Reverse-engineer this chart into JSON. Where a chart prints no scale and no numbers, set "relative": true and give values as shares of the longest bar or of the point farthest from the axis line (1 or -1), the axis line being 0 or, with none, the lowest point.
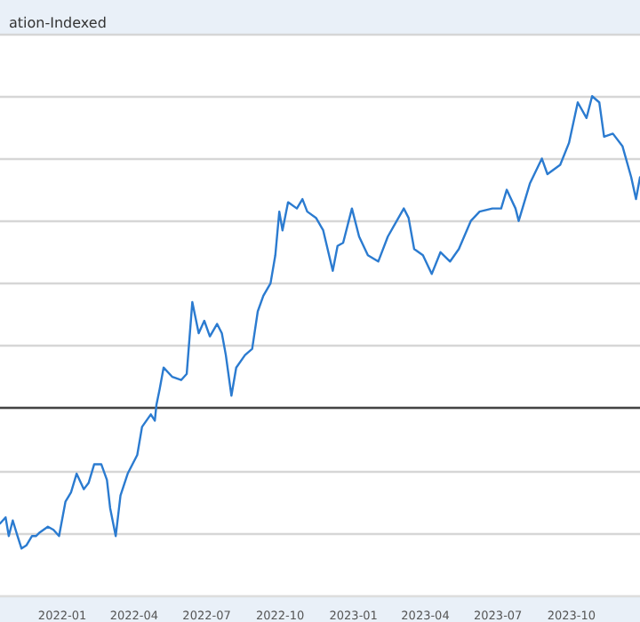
{
  "chart_data": {
    "type": "line",
    "title": "ation-Indexed",
    "relative": true,
    "grid": "y",
    "marker": "none",
    "line_style": "solid",
    "xlim": [
      "2021-10-15",
      "2023-12-26"
    ],
    "xticks": [
      {
        "value": "2022-01-01",
        "label": "2022-01"
      },
      {
        "value": "2022-04-01",
        "label": "2022-04"
      },
      {
        "value": "2022-07-01",
        "label": "2022-07"
      },
      {
        "value": "2022-10-01",
        "label": "2022-10"
      },
      {
        "value": "2023-01-01",
        "label": "2023-01"
      },
      {
        "value": "2023-04-01",
        "label": "2023-04"
      },
      {
        "value": "2023-07-01",
        "label": "2023-07"
      },
      {
        "value": "2023-10-01",
        "label": "2023-10"
      }
    ],
    "x": [
      "2021-10-15",
      "2021-10-22",
      "2021-10-26",
      "2021-10-31",
      "2021-11-06",
      "2021-11-11",
      "2021-11-17",
      "2021-11-24",
      "2021-11-29",
      "2021-12-03",
      "2021-12-14",
      "2021-12-21",
      "2021-12-28",
      "2022-01-05",
      "2022-01-12",
      "2022-01-19",
      "2022-01-28",
      "2022-02-03",
      "2022-02-10",
      "2022-02-19",
      "2022-02-26",
      "2022-03-02",
      "2022-03-09",
      "2022-03-15",
      "2022-03-24",
      "2022-04-05",
      "2022-04-11",
      "2022-04-22",
      "2022-04-27",
      "2022-04-29",
      "2022-05-03",
      "2022-05-08",
      "2022-05-19",
      "2022-05-30",
      "2022-06-06",
      "2022-06-13",
      "2022-06-21",
      "2022-06-28",
      "2022-07-05",
      "2022-07-14",
      "2022-07-20",
      "2022-07-25",
      "2022-08-01",
      "2022-08-07",
      "2022-08-18",
      "2022-08-27",
      "2022-09-03",
      "2022-09-10",
      "2022-09-19",
      "2022-09-25",
      "2022-09-30",
      "2022-10-04",
      "2022-10-11",
      "2022-10-22",
      "2022-10-29",
      "2022-11-04",
      "2022-11-15",
      "2022-11-24",
      "2022-12-06",
      "2022-12-12",
      "2022-12-19",
      "2022-12-30",
      "2023-01-08",
      "2023-01-19",
      "2023-02-01",
      "2023-02-13",
      "2023-03-05",
      "2023-03-11",
      "2023-03-18",
      "2023-03-29",
      "2023-04-09",
      "2023-04-20",
      "2023-05-02",
      "2023-05-13",
      "2023-05-28",
      "2023-06-08",
      "2023-06-24",
      "2023-07-05",
      "2023-07-12",
      "2023-07-23",
      "2023-07-27",
      "2023-08-10",
      "2023-08-25",
      "2023-09-01",
      "2023-09-17",
      "2023-09-28",
      "2023-10-09",
      "2023-10-20",
      "2023-10-27",
      "2023-11-05",
      "2023-11-11",
      "2023-11-22",
      "2023-12-04",
      "2023-12-15",
      "2023-12-21",
      "2023-12-26"
    ],
    "series": [
      {
        "color": "#2b7bd0",
        "values": [
          -0.37,
          -0.35,
          -0.41,
          -0.36,
          -0.41,
          -0.45,
          -0.44,
          -0.41,
          -0.41,
          -0.4,
          -0.38,
          -0.39,
          -0.41,
          -0.3,
          -0.27,
          -0.21,
          -0.26,
          -0.24,
          -0.18,
          -0.18,
          -0.23,
          -0.32,
          -0.41,
          -0.28,
          -0.21,
          -0.15,
          -0.06,
          -0.02,
          -0.04,
          0.01,
          0.06,
          0.13,
          0.1,
          0.09,
          0.11,
          0.34,
          0.24,
          0.28,
          0.23,
          0.27,
          0.24,
          0.17,
          0.04,
          0.13,
          0.17,
          0.19,
          0.31,
          0.36,
          0.4,
          0.49,
          0.63,
          0.57,
          0.66,
          0.64,
          0.67,
          0.63,
          0.61,
          0.57,
          0.44,
          0.52,
          0.53,
          0.64,
          0.55,
          0.49,
          0.47,
          0.55,
          0.64,
          0.61,
          0.51,
          0.49,
          0.43,
          0.5,
          0.47,
          0.51,
          0.6,
          0.63,
          0.64,
          0.64,
          0.7,
          0.64,
          0.6,
          0.72,
          0.8,
          0.75,
          0.78,
          0.85,
          0.98,
          0.93,
          1,
          0.98,
          0.87,
          0.88,
          0.84,
          0.74,
          0.67,
          0.74
        ]
      }
    ]
  }
}
